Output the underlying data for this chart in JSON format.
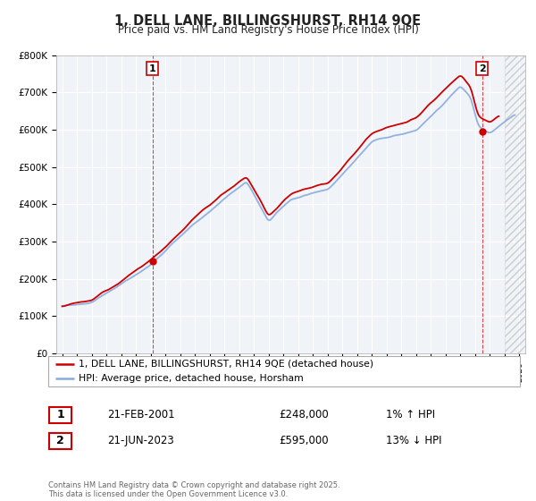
{
  "title": "1, DELL LANE, BILLINGSHURST, RH14 9QE",
  "subtitle": "Price paid vs. HM Land Registry's House Price Index (HPI)",
  "ylim": [
    0,
    800000
  ],
  "yticks": [
    0,
    100000,
    200000,
    300000,
    400000,
    500000,
    600000,
    700000,
    800000
  ],
  "ytick_labels": [
    "£0",
    "£100K",
    "£200K",
    "£300K",
    "£400K",
    "£500K",
    "£600K",
    "£700K",
    "£800K"
  ],
  "xmin": 1994.6,
  "xmax": 2026.4,
  "line_color": "#cc0000",
  "hpi_color": "#88aadd",
  "marker1_x": 2001.12,
  "marker1_y": 248000,
  "marker2_x": 2023.47,
  "marker2_y": 595000,
  "red_end_year": 2024.5,
  "hpi_end_year": 2025.5,
  "legend_line1": "1, DELL LANE, BILLINGSHURST, RH14 9QE (detached house)",
  "legend_line2": "HPI: Average price, detached house, Horsham",
  "table_row1": [
    "1",
    "21-FEB-2001",
    "£248,000",
    "1% ↑ HPI"
  ],
  "table_row2": [
    "2",
    "21-JUN-2023",
    "£595,000",
    "13% ↓ HPI"
  ],
  "footer": "Contains HM Land Registry data © Crown copyright and database right 2025.\nThis data is licensed under the Open Government Licence v3.0.",
  "background_color": "#ffffff",
  "plot_bg_color": "#f0f4f8",
  "grid_color": "#ffffff"
}
